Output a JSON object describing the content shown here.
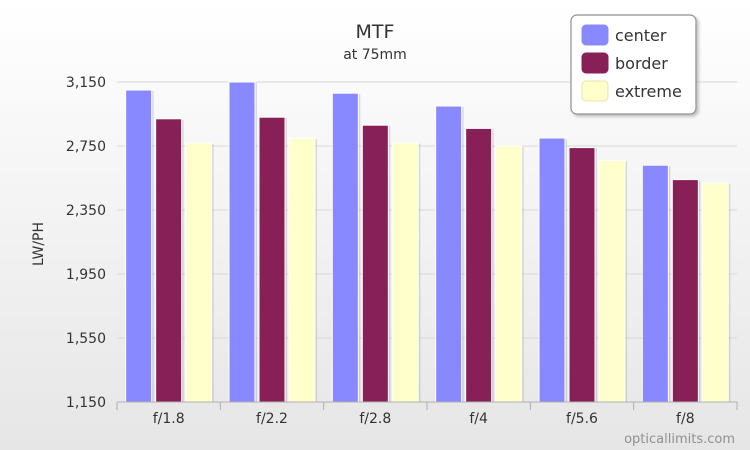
{
  "chart_data": {
    "type": "bar",
    "title": "MTF",
    "subtitle": "at 75mm",
    "xlabel": "",
    "ylabel": "LW/PH",
    "categories": [
      "f/1.8",
      "f/2.2",
      "f/2.8",
      "f/4",
      "f/5.6",
      "f/8"
    ],
    "series": [
      {
        "name": "center",
        "color": "#8888ff",
        "values": [
          3100,
          3150,
          3080,
          3000,
          2800,
          2630
        ]
      },
      {
        "name": "border",
        "color": "#862057",
        "values": [
          2920,
          2930,
          2880,
          2860,
          2740,
          2540
        ]
      },
      {
        "name": "extreme",
        "color": "#ffffcc",
        "values": [
          2770,
          2800,
          2770,
          2750,
          2660,
          2520
        ]
      }
    ],
    "yticks": [
      "1,150",
      "1,550",
      "1,950",
      "2,350",
      "2,750",
      "3,150"
    ],
    "ylim": [
      1150,
      3150
    ],
    "grid": true,
    "legend_position": "top-right",
    "watermark": "opticallimits.com"
  }
}
